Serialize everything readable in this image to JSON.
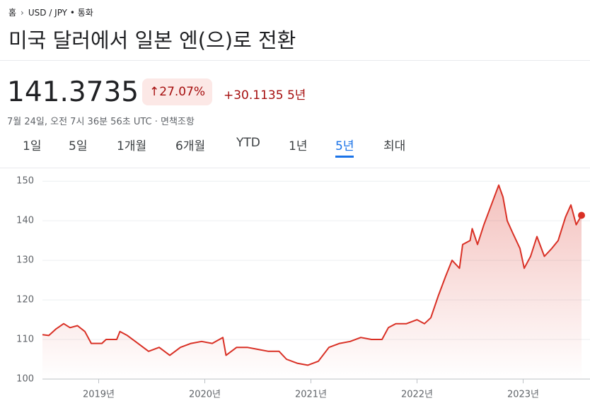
{
  "breadcrumb": {
    "home": "홈",
    "current": "USD / JPY • 통화"
  },
  "header": {
    "title": "미국 달러에서 일본 엔(으)로 전환",
    "price": "141.3735",
    "change_percent": "27.07%",
    "change_value": "+30.1135",
    "change_period": "5년",
    "timestamp": "7월 24일, 오전 7시 36분 56초 UTC",
    "disclaimer": "면책조항"
  },
  "tabs": {
    "items": [
      "1일",
      "5일",
      "1개월",
      "6개월",
      "YTD",
      "1년",
      "5년",
      "최대"
    ],
    "selected": 6
  },
  "chart_data": {
    "type": "line",
    "x": [
      2018.47,
      2018.53,
      2018.6,
      2018.67,
      2018.73,
      2018.8,
      2018.87,
      2018.93,
      2019.03,
      2019.07,
      2019.17,
      2019.2,
      2019.27,
      2019.37,
      2019.47,
      2019.57,
      2019.67,
      2019.77,
      2019.87,
      2019.97,
      2020.07,
      2020.17,
      2020.2,
      2020.3,
      2020.4,
      2020.5,
      2020.6,
      2020.7,
      2020.77,
      2020.87,
      2020.97,
      2021.07,
      2021.17,
      2021.27,
      2021.37,
      2021.47,
      2021.57,
      2021.67,
      2021.73,
      2021.8,
      2021.9,
      2022,
      2022.07,
      2022.13,
      2022.2,
      2022.27,
      2022.33,
      2022.4,
      2022.43,
      2022.5,
      2022.52,
      2022.57,
      2022.63,
      2022.7,
      2022.77,
      2022.81,
      2022.85,
      2022.9,
      2022.97,
      2023.01,
      2023.07,
      2023.13,
      2023.2,
      2023.27,
      2023.33,
      2023.4,
      2023.45,
      2023.5,
      2023.55
    ],
    "series": [
      {
        "name": "USD / JPY",
        "color": "#d93025",
        "values": [
          111.2,
          111,
          112.7,
          114,
          113,
          113.5,
          112,
          109,
          109,
          110,
          110,
          112,
          111,
          109,
          107,
          108,
          106,
          108,
          109,
          109.5,
          109,
          110.5,
          106,
          108,
          108,
          107.5,
          107,
          107,
          105,
          104,
          103.5,
          104.5,
          108,
          109,
          109.5,
          110.5,
          110,
          110,
          113,
          114,
          114,
          115,
          114,
          115.5,
          121,
          126,
          130,
          128,
          134,
          135,
          138,
          134,
          139,
          144,
          149,
          146,
          140,
          137,
          133,
          128,
          131,
          136,
          131,
          133,
          135,
          141,
          144,
          139,
          141.37
        ]
      }
    ],
    "xlim": [
      2018.47,
      2023.55
    ],
    "ylim": [
      100,
      152
    ],
    "xticks": [
      {
        "value": 2019,
        "label": "2019년"
      },
      {
        "value": 2020,
        "label": "2020년"
      },
      {
        "value": 2021,
        "label": "2021년"
      },
      {
        "value": 2022,
        "label": "2022년"
      },
      {
        "value": 2023,
        "label": "2023년"
      }
    ],
    "yticks": [
      100,
      110,
      120,
      130,
      140,
      150
    ],
    "grid": true
  }
}
